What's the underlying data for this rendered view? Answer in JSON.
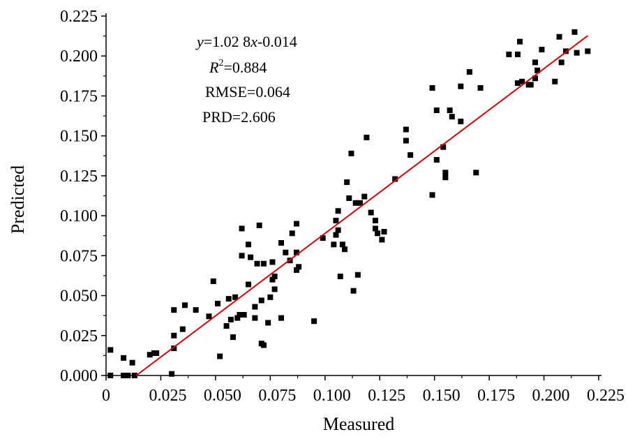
{
  "chart_data": {
    "type": "scatter",
    "title": "",
    "xlabel": "Measured",
    "ylabel": "Predicted",
    "xlim": [
      0,
      0.225
    ],
    "ylim": [
      0,
      0.225
    ],
    "x_ticks": [
      0,
      0.025,
      0.05,
      0.075,
      0.1,
      0.125,
      0.15,
      0.175,
      0.2,
      0.225
    ],
    "x_tick_labels": [
      "0",
      "0.025",
      "0.050",
      "0.075",
      "0.100",
      "0.125",
      "0.150",
      "0.175",
      "0.200",
      "0.225"
    ],
    "y_ticks": [
      0,
      0.025,
      0.05,
      0.075,
      0.1,
      0.125,
      0.15,
      0.175,
      0.2,
      0.225
    ],
    "y_tick_labels": [
      "0.000",
      "0.025",
      "0.050",
      "0.075",
      "0.100",
      "0.125",
      "0.150",
      "0.175",
      "0.200",
      "0.225"
    ],
    "grid": false,
    "legend": "none",
    "marker_color": "#000000",
    "line_color": "#e00000",
    "points": [
      [
        0.002,
        0.016
      ],
      [
        0.002,
        0.0
      ],
      [
        0.008,
        0.011
      ],
      [
        0.008,
        0.0
      ],
      [
        0.01,
        0.0
      ],
      [
        0.012,
        0.008
      ],
      [
        0.013,
        0.0
      ],
      [
        0.02,
        0.013
      ],
      [
        0.022,
        0.014
      ],
      [
        0.023,
        0.014
      ],
      [
        0.03,
        0.001
      ],
      [
        0.031,
        0.017
      ],
      [
        0.031,
        0.025
      ],
      [
        0.031,
        0.041
      ],
      [
        0.035,
        0.029
      ],
      [
        0.036,
        0.044
      ],
      [
        0.041,
        0.041
      ],
      [
        0.047,
        0.037
      ],
      [
        0.049,
        0.059
      ],
      [
        0.051,
        0.045
      ],
      [
        0.052,
        0.012
      ],
      [
        0.055,
        0.031
      ],
      [
        0.056,
        0.048
      ],
      [
        0.057,
        0.035
      ],
      [
        0.058,
        0.024
      ],
      [
        0.059,
        0.049
      ],
      [
        0.06,
        0.036
      ],
      [
        0.061,
        0.038
      ],
      [
        0.062,
        0.092
      ],
      [
        0.062,
        0.075
      ],
      [
        0.063,
        0.038
      ],
      [
        0.065,
        0.082
      ],
      [
        0.065,
        0.057
      ],
      [
        0.066,
        0.074
      ],
      [
        0.068,
        0.043
      ],
      [
        0.068,
        0.036
      ],
      [
        0.069,
        0.07
      ],
      [
        0.07,
        0.094
      ],
      [
        0.071,
        0.02
      ],
      [
        0.071,
        0.047
      ],
      [
        0.072,
        0.019
      ],
      [
        0.072,
        0.07
      ],
      [
        0.074,
        0.033
      ],
      [
        0.075,
        0.049
      ],
      [
        0.076,
        0.071
      ],
      [
        0.076,
        0.06
      ],
      [
        0.077,
        0.054
      ],
      [
        0.077,
        0.062
      ],
      [
        0.08,
        0.036
      ],
      [
        0.08,
        0.083
      ],
      [
        0.082,
        0.077
      ],
      [
        0.084,
        0.072
      ],
      [
        0.085,
        0.089
      ],
      [
        0.087,
        0.095
      ],
      [
        0.087,
        0.077
      ],
      [
        0.087,
        0.066
      ],
      [
        0.088,
        0.068
      ],
      [
        0.095,
        0.034
      ],
      [
        0.099,
        0.086
      ],
      [
        0.104,
        0.082
      ],
      [
        0.105,
        0.097
      ],
      [
        0.105,
        0.088
      ],
      [
        0.106,
        0.103
      ],
      [
        0.106,
        0.091
      ],
      [
        0.107,
        0.062
      ],
      [
        0.108,
        0.082
      ],
      [
        0.109,
        0.079
      ],
      [
        0.11,
        0.121
      ],
      [
        0.111,
        0.111
      ],
      [
        0.112,
        0.139
      ],
      [
        0.113,
        0.053
      ],
      [
        0.114,
        0.108
      ],
      [
        0.115,
        0.063
      ],
      [
        0.116,
        0.108
      ],
      [
        0.118,
        0.112
      ],
      [
        0.119,
        0.149
      ],
      [
        0.121,
        0.102
      ],
      [
        0.123,
        0.092
      ],
      [
        0.123,
        0.097
      ],
      [
        0.124,
        0.089
      ],
      [
        0.126,
        0.085
      ],
      [
        0.127,
        0.09
      ],
      [
        0.132,
        0.123
      ],
      [
        0.137,
        0.154
      ],
      [
        0.137,
        0.147
      ],
      [
        0.139,
        0.138
      ],
      [
        0.149,
        0.18
      ],
      [
        0.149,
        0.113
      ],
      [
        0.151,
        0.166
      ],
      [
        0.151,
        0.135
      ],
      [
        0.154,
        0.143
      ],
      [
        0.155,
        0.127
      ],
      [
        0.155,
        0.124
      ],
      [
        0.157,
        0.166
      ],
      [
        0.158,
        0.162
      ],
      [
        0.162,
        0.181
      ],
      [
        0.162,
        0.159
      ],
      [
        0.166,
        0.19
      ],
      [
        0.169,
        0.127
      ],
      [
        0.171,
        0.18
      ],
      [
        0.184,
        0.201
      ],
      [
        0.188,
        0.201
      ],
      [
        0.188,
        0.183
      ],
      [
        0.189,
        0.209
      ],
      [
        0.19,
        0.184
      ],
      [
        0.193,
        0.182
      ],
      [
        0.194,
        0.182
      ],
      [
        0.196,
        0.196
      ],
      [
        0.196,
        0.186
      ],
      [
        0.197,
        0.191
      ],
      [
        0.199,
        0.204
      ],
      [
        0.205,
        0.184
      ],
      [
        0.207,
        0.212
      ],
      [
        0.208,
        0.196
      ],
      [
        0.21,
        0.203
      ],
      [
        0.214,
        0.215
      ],
      [
        0.215,
        0.202
      ],
      [
        0.22,
        0.203
      ]
    ],
    "fit_line": {
      "x": [
        0.0138,
        0.22
      ],
      "y": [
        0.0,
        0.2127
      ]
    },
    "annotations": {
      "equation_var_y": "y",
      "equation_mid": "=1.02 8",
      "equation_var_x": "x",
      "equation_end": "-0.014",
      "r2_var": "R",
      "r2_exp": "2",
      "r2_value": "=0.884",
      "rmse": "RMSE=0.064",
      "prd": "PRD=2.606"
    }
  }
}
